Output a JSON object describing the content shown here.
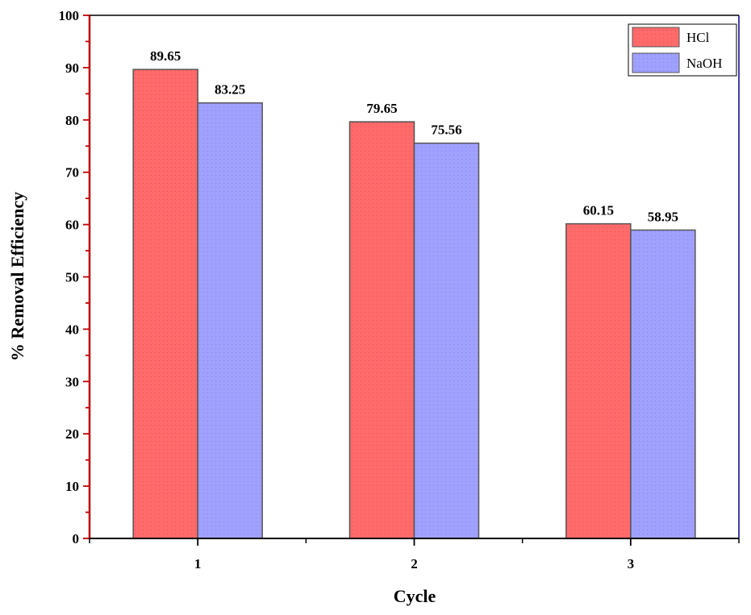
{
  "chart_data": {
    "type": "bar",
    "title": "",
    "xlabel": "Cycle",
    "ylabel": "% Removal Efficiency",
    "categories": [
      "1",
      "2",
      "3"
    ],
    "series": [
      {
        "name": "HCl",
        "values": [
          89.65,
          79.65,
          60.15
        ],
        "labels": [
          "89.65",
          "79.65",
          "60.15"
        ],
        "color": "#ff6b6b"
      },
      {
        "name": "NaOH",
        "values": [
          83.25,
          75.56,
          58.95
        ],
        "labels": [
          "83.25",
          "75.56",
          "58.95"
        ],
        "color": "#a0a0ff"
      }
    ],
    "ylim": [
      0,
      100
    ],
    "yticks": [
      "0",
      "10",
      "20",
      "30",
      "40",
      "50",
      "60",
      "70",
      "80",
      "90",
      "100"
    ],
    "grid": false,
    "legend_position": "top-right",
    "left_axis_color": "#c00000",
    "right_axis_color": "#00008b"
  }
}
